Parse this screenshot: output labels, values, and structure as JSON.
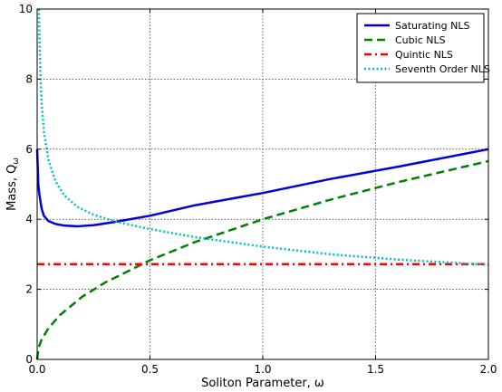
{
  "chart_data": {
    "type": "line",
    "xlabel": "Soliton Parameter,  ω",
    "ylabel": "Mass,  Q",
    "ylabel_subscript": "ω",
    "xlim": [
      0.0,
      2.0
    ],
    "ylim": [
      0,
      10
    ],
    "xticks": [
      "0.0",
      "0.5",
      "1.0",
      "1.5",
      "2.0"
    ],
    "yticks": [
      "0",
      "2",
      "4",
      "6",
      "8",
      "10"
    ],
    "grid": true,
    "legend_position": "top-right",
    "series": [
      {
        "name": "Saturating NLS",
        "color": "#0000dd",
        "style": "solid",
        "x": [
          0.0,
          0.005,
          0.01,
          0.02,
          0.03,
          0.05,
          0.08,
          0.12,
          0.18,
          0.25,
          0.35,
          0.5,
          0.7,
          1.0,
          1.3,
          1.6,
          2.0
        ],
        "y": [
          6.0,
          5.0,
          4.7,
          4.3,
          4.1,
          3.95,
          3.87,
          3.82,
          3.8,
          3.83,
          3.93,
          4.1,
          4.4,
          4.75,
          5.15,
          5.5,
          6.0
        ]
      },
      {
        "name": "Cubic NLS",
        "color": "#008000",
        "style": "dashed",
        "x": [
          0.0,
          0.005,
          0.01,
          0.02,
          0.05,
          0.1,
          0.2,
          0.3,
          0.5,
          0.7,
          1.0,
          1.3,
          1.6,
          2.0
        ],
        "y": [
          0.0,
          0.28,
          0.4,
          0.57,
          0.89,
          1.26,
          1.79,
          2.19,
          2.83,
          3.35,
          4.0,
          4.56,
          5.06,
          5.66
        ]
      },
      {
        "name": "Quintic NLS",
        "color": "#ff0000",
        "style": "dashdot",
        "x": [
          0.0,
          2.0
        ],
        "y": [
          2.72,
          2.72
        ]
      },
      {
        "name": "Seventh Order NLS",
        "color": "#00bfbf",
        "style": "dotted",
        "x": [
          0.008,
          0.01,
          0.015,
          0.02,
          0.03,
          0.05,
          0.08,
          0.12,
          0.18,
          0.25,
          0.35,
          0.5,
          0.7,
          1.0,
          1.3,
          1.6,
          2.0
        ],
        "y": [
          10.0,
          9.2,
          8.0,
          7.3,
          6.5,
          5.7,
          5.1,
          4.68,
          4.35,
          4.13,
          3.93,
          3.72,
          3.49,
          3.22,
          3.0,
          2.85,
          2.7
        ]
      }
    ]
  }
}
